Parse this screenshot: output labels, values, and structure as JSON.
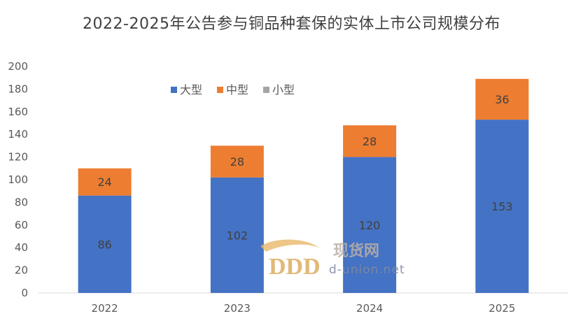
{
  "chart_data": {
    "type": "bar",
    "stacked": true,
    "title": "2022-2025年公告参与铜品种套保的实体上市公司规模分布",
    "categories": [
      "2022",
      "2023",
      "2024",
      "2025"
    ],
    "series": [
      {
        "name": "大型",
        "values": [
          86,
          102,
          120,
          153
        ],
        "color": "#4472C4"
      },
      {
        "name": "中型",
        "values": [
          24,
          28,
          28,
          36
        ],
        "color": "#ED7D31"
      },
      {
        "name": "小型",
        "values": [
          0,
          0,
          0,
          0
        ],
        "color": "#A5A5A5"
      }
    ],
    "ylim": [
      0,
      200
    ],
    "yticks": [
      0,
      20,
      40,
      60,
      80,
      100,
      120,
      140,
      160,
      180,
      200
    ],
    "grid": false,
    "legend_position": "top-left"
  },
  "watermark": {
    "text": "现货网",
    "url": "d-union.net"
  }
}
